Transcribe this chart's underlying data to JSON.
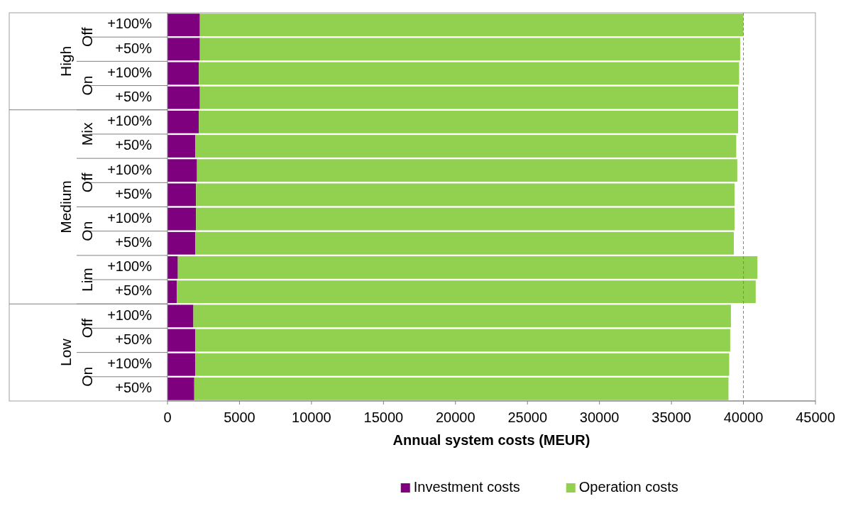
{
  "chart_data": {
    "type": "bar",
    "orientation": "horizontal",
    "stacked": true,
    "categories": [
      "+100%",
      "+50%",
      "+100%",
      "+50%",
      "+100%",
      "+50%",
      "+100%",
      "+50%",
      "+100%",
      "+50%",
      "+100%",
      "+50%",
      "+100%",
      "+50%",
      "+100%",
      "+50%"
    ],
    "series": [
      {
        "name": "Investment costs",
        "color": "#7f007f",
        "values": [
          2250,
          2250,
          2180,
          2250,
          2180,
          1930,
          2050,
          1980,
          1980,
          1930,
          720,
          650,
          1800,
          1930,
          1930,
          1860
        ]
      },
      {
        "name": "Operation costs",
        "color": "#92d050",
        "values": [
          37750,
          37520,
          37520,
          37380,
          37450,
          37570,
          37520,
          37400,
          37400,
          37400,
          40250,
          40200,
          37330,
          37150,
          37080,
          37100
        ]
      }
    ],
    "xlabel": "Annual system costs (MEUR)",
    "xlim": [
      0,
      45000
    ],
    "xticks": [
      0,
      5000,
      10000,
      15000,
      20000,
      25000,
      30000,
      35000,
      40000,
      45000
    ],
    "annotations": [
      "High",
      "Medium",
      "Low",
      "Off",
      "On",
      "Mix",
      "Off",
      "On",
      "Lim",
      "Off",
      "On"
    ],
    "ref_lines": [
      {
        "axis": "x",
        "value": 40000,
        "color": "#808080",
        "line_style": "dashed"
      }
    ],
    "grid": false,
    "legend": "bottom"
  }
}
